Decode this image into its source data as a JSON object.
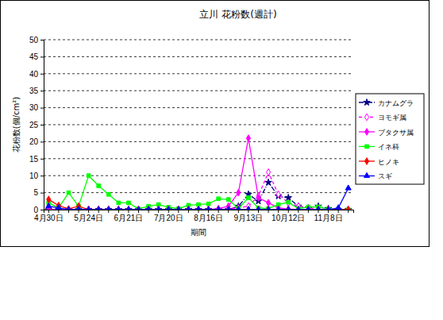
{
  "chart_data": {
    "type": "line",
    "title": "立川 花粉数(週計)",
    "x_label": "期間",
    "y_label": "花粉数(個/cm²)",
    "categories": [
      "4月30日",
      null,
      null,
      null,
      "5月24日",
      null,
      null,
      null,
      "6月21日",
      null,
      null,
      null,
      "7月20日",
      null,
      null,
      null,
      "8月16日",
      null,
      null,
      null,
      "9月13日",
      null,
      null,
      null,
      "10月12日",
      null,
      null,
      null,
      "11月8日",
      null,
      null
    ],
    "ylim": [
      0,
      50
    ],
    "yticks": [
      0,
      5,
      10,
      15,
      20,
      25,
      30,
      35,
      40,
      45,
      50
    ],
    "grid": true,
    "legend": "right",
    "series": [
      {
        "name": "カナムグラ",
        "color": "#000080",
        "marker": "star",
        "line_style": "dashdot",
        "values": [
          0,
          0,
          0,
          0,
          0,
          0,
          0,
          0,
          0,
          0,
          0,
          0,
          0,
          0,
          0,
          0,
          0,
          0,
          0,
          1,
          4.5,
          2.5,
          8,
          4,
          3.5,
          1,
          0.5,
          1,
          0.3,
          0,
          0
        ]
      },
      {
        "name": "ヨモギ属",
        "color": "#ff00ff",
        "marker": "open_diamond",
        "line_style": "dashed",
        "values": [
          0,
          0,
          0,
          0,
          0,
          0,
          0,
          0,
          0,
          0,
          0,
          0,
          0,
          0,
          0,
          0,
          0,
          0,
          0.3,
          0.5,
          1,
          4,
          11,
          4.5,
          2,
          1,
          0.5,
          0.3,
          0,
          0,
          0
        ]
      },
      {
        "name": "ブタクサ属",
        "color": "#ff00ff",
        "marker": "diamond",
        "line_style": "solid",
        "values": [
          0,
          0,
          0,
          0,
          0,
          0,
          0,
          0,
          0,
          0,
          0,
          0,
          0,
          0,
          0,
          0,
          0,
          0.3,
          1,
          5,
          21,
          3.5,
          2,
          0.5,
          0.2,
          0,
          0,
          0,
          0,
          0,
          0
        ]
      },
      {
        "name": "イネ科",
        "color": "#00ff00",
        "marker": "square",
        "line_style": "solid",
        "values": [
          2,
          0.5,
          5,
          1,
          10,
          7,
          4.5,
          2,
          2,
          0.2,
          1,
          1.5,
          0.7,
          0.3,
          1.3,
          1.5,
          1.7,
          3.2,
          3,
          0.3,
          3.5,
          0.5,
          0.3,
          1.5,
          2.2,
          0.3,
          0.8,
          0.8,
          0.2,
          0.1,
          0
        ]
      },
      {
        "name": "ヒノキ",
        "color": "#ff0000",
        "marker": "diamond",
        "line_style": "solid",
        "values": [
          3,
          1.2,
          0.2,
          1,
          0,
          0,
          0,
          0,
          0,
          0,
          0,
          0,
          0,
          0,
          0,
          0,
          0,
          0,
          0,
          0,
          0,
          0,
          0,
          0,
          0,
          0,
          0,
          0,
          0,
          0,
          0
        ]
      },
      {
        "name": "スギ",
        "color": "#0000ff",
        "marker": "triangle",
        "line_style": "solid",
        "values": [
          1,
          0.5,
          0,
          0,
          0,
          0,
          0,
          0,
          0,
          0,
          0,
          0,
          0,
          0,
          0,
          0,
          0,
          0,
          0,
          0,
          0,
          0,
          0,
          0,
          0,
          0,
          0,
          0,
          0,
          0.5,
          6.3
        ]
      }
    ]
  }
}
